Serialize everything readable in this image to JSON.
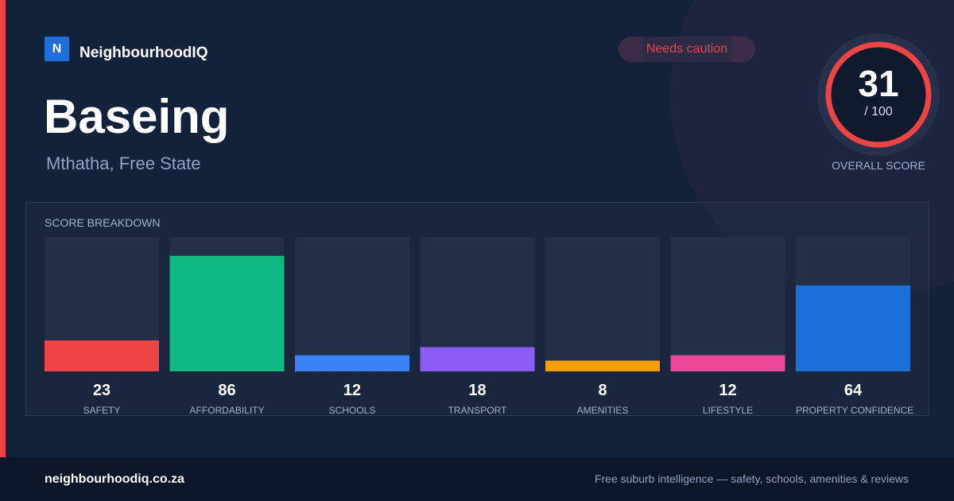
{
  "brand": {
    "logo_letter": "N",
    "name": "NeighbourhoodIQ"
  },
  "suburb": {
    "name": "Baseing",
    "location": "Mthatha, Free State"
  },
  "badge": {
    "label": "Needs caution",
    "color": "#ef4444"
  },
  "overall": {
    "score": "31",
    "max_label": "/ 100",
    "label": "OVERALL SCORE",
    "value": 31,
    "max": 100,
    "ring_color": "#ef4444"
  },
  "breakdown": {
    "title": "SCORE BREAKDOWN"
  },
  "chart_data": {
    "type": "bar",
    "title": "SCORE BREAKDOWN",
    "ylim": [
      0,
      100
    ],
    "grid": false,
    "categories": [
      "SAFETY",
      "AFFORDABILITY",
      "SCHOOLS",
      "TRANSPORT",
      "AMENITIES",
      "LIFESTYLE",
      "PROPERTY CONFIDENCE"
    ],
    "values": [
      23,
      86,
      12,
      18,
      8,
      12,
      64
    ],
    "colors": [
      "#ef4444",
      "#10b981",
      "#3b82f6",
      "#8b5cf6",
      "#f59e0b",
      "#ec4899",
      "#1d6fd8"
    ],
    "track_color": "#222f47"
  },
  "footer": {
    "url": "neighbourhoodiq.co.za",
    "tagline": "Free suburb intelligence — safety, schools, amenities & reviews"
  }
}
